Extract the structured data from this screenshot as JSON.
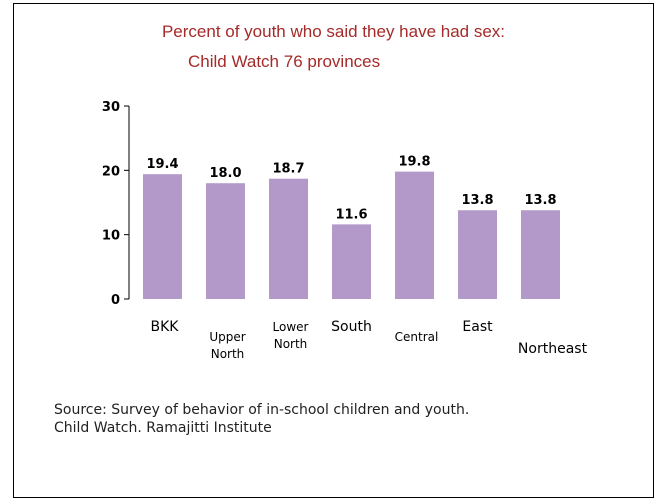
{
  "chart_data": {
    "type": "bar",
    "title_line1": "Percent of youth who said they have had sex:",
    "title_line2": "Child Watch 76 provinces",
    "categories": [
      [
        "BKK"
      ],
      [
        "Upper",
        "North"
      ],
      [
        "Lower",
        "North"
      ],
      [
        "South"
      ],
      [
        "Central"
      ],
      [
        "East"
      ],
      [
        "Northeast"
      ]
    ],
    "values": [
      19.4,
      18.0,
      18.7,
      11.6,
      19.8,
      13.8,
      13.8
    ],
    "value_labels": [
      "19.4",
      "18.0",
      "18.7",
      "11.6",
      "19.8",
      "13.8",
      "13.8"
    ],
    "ylim": [
      0,
      30
    ],
    "yticks": [
      0,
      10,
      20,
      30
    ],
    "bar_color": "#b399c9",
    "grid": false,
    "legend": "none"
  },
  "source": {
    "line1": "Source:  Survey of behavior of in-school children and youth.",
    "line2": "Child Watch.  Ramajitti Institute"
  }
}
